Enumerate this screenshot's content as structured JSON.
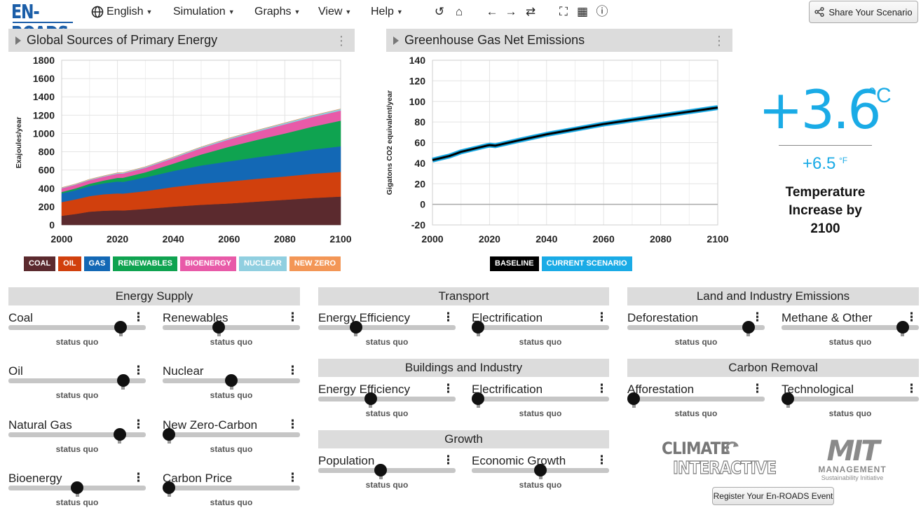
{
  "app": {
    "logo": "EN-ROADS"
  },
  "menu": {
    "language": "English",
    "simulation": "Simulation",
    "graphs": "Graphs",
    "view": "View",
    "help": "Help"
  },
  "share_button": "Share Your Scenario",
  "panels": {
    "left_title": "Global Sources of Primary Energy",
    "right_title": "Greenhouse Gas Net Emissions"
  },
  "chart_data": [
    {
      "type": "area",
      "stacked": true,
      "ylabel": "Exajoules/year",
      "xlabel": "",
      "x": [
        2000,
        2005,
        2010,
        2015,
        2020,
        2022,
        2030,
        2040,
        2050,
        2060,
        2070,
        2080,
        2090,
        2100
      ],
      "xticks": [
        2000,
        2020,
        2040,
        2060,
        2080,
        2100
      ],
      "yticks": [
        0,
        200,
        400,
        600,
        800,
        1000,
        1200,
        1400,
        1600,
        1800
      ],
      "ylim": [
        0,
        1800
      ],
      "xlim": [
        2000,
        2100
      ],
      "grid": true,
      "legend_position": "bottom",
      "series": [
        {
          "name": "COAL",
          "color": "#5b2a2e",
          "values": [
            100,
            120,
            145,
            155,
            160,
            158,
            175,
            200,
            220,
            235,
            255,
            275,
            295,
            310
          ]
        },
        {
          "name": "OIL",
          "color": "#d1400d",
          "values": [
            150,
            160,
            170,
            180,
            185,
            185,
            195,
            215,
            230,
            240,
            250,
            255,
            265,
            270
          ]
        },
        {
          "name": "GAS",
          "color": "#1368b5",
          "values": [
            95,
            100,
            110,
            120,
            130,
            128,
            150,
            175,
            200,
            220,
            235,
            250,
            265,
            280
          ]
        },
        {
          "name": "RENEWABLES",
          "color": "#0fa350",
          "values": [
            15,
            20,
            25,
            30,
            40,
            45,
            55,
            80,
            120,
            160,
            190,
            220,
            250,
            280
          ]
        },
        {
          "name": "BIOENERGY",
          "color": "#e85aa8",
          "values": [
            40,
            40,
            40,
            42,
            45,
            46,
            50,
            60,
            70,
            80,
            90,
            100,
            105,
            110
          ]
        },
        {
          "name": "NUCLEAR",
          "color": "#90cfe0",
          "values": [
            8,
            8,
            9,
            9,
            10,
            10,
            11,
            12,
            13,
            14,
            15,
            16,
            17,
            18
          ]
        },
        {
          "name": "NEW ZERO",
          "color": "#f39656",
          "values": [
            0,
            0,
            0,
            0,
            0,
            0,
            0,
            0,
            0,
            0,
            0,
            0,
            0,
            0
          ]
        }
      ]
    },
    {
      "type": "line",
      "ylabel": "Gigatons CO2 equivalent/year",
      "xlabel": "",
      "x": [
        2000,
        2003,
        2006,
        2008,
        2010,
        2013,
        2016,
        2019,
        2020,
        2022,
        2030,
        2040,
        2050,
        2060,
        2070,
        2080,
        2090,
        2100
      ],
      "xticks": [
        2000,
        2020,
        2040,
        2060,
        2080,
        2100
      ],
      "yticks": [
        -20,
        0,
        20,
        40,
        60,
        80,
        100,
        120,
        140
      ],
      "ylim": [
        -20,
        140
      ],
      "xlim": [
        2000,
        2100
      ],
      "grid": true,
      "legend_position": "bottom",
      "series": [
        {
          "name": "BASELINE",
          "color": "#000000",
          "values": [
            43,
            45,
            47,
            49,
            51,
            53,
            55,
            57,
            57.5,
            57,
            62,
            68,
            73,
            78,
            82,
            86,
            90,
            94
          ]
        },
        {
          "name": "CURRENT SCENARIO",
          "color": "#1aabe6",
          "values": [
            43,
            45,
            47,
            49,
            51,
            53,
            55,
            57,
            57.5,
            57,
            62,
            68,
            73,
            78,
            82,
            86,
            90,
            94
          ]
        }
      ]
    }
  ],
  "temperature": {
    "celsius": "+3.6",
    "celsius_unit": "°C",
    "fahrenheit": "+6.5",
    "fahrenheit_unit": "°F",
    "label_line1": "Temperature",
    "label_line2": "Increase by",
    "label_line3": "2100"
  },
  "sections": {
    "energy_supply": "Energy Supply",
    "transport": "Transport",
    "buildings": "Buildings and Industry",
    "growth": "Growth",
    "land": "Land and Industry Emissions",
    "carbon_removal": "Carbon Removal"
  },
  "status": "status quo",
  "sliders": {
    "coal": {
      "label": "Coal",
      "value": 0.85
    },
    "renewables": {
      "label": "Renewables",
      "value": 0.4
    },
    "oil": {
      "label": "Oil",
      "value": 0.87
    },
    "nuclear": {
      "label": "Nuclear",
      "value": 0.5
    },
    "natural_gas": {
      "label": "Natural Gas",
      "value": 0.84
    },
    "new_zero_carbon": {
      "label": "New Zero-Carbon",
      "value": 0.0
    },
    "bioenergy": {
      "label": "Bioenergy",
      "value": 0.5
    },
    "carbon_price": {
      "label": "Carbon Price",
      "value": 0.0
    },
    "transport_efficiency": {
      "label": "Energy Efficiency",
      "value": 0.25
    },
    "transport_electrification": {
      "label": "Electrification",
      "value": 0.0
    },
    "buildings_efficiency": {
      "label": "Energy Efficiency",
      "value": 0.37
    },
    "buildings_electrification": {
      "label": "Electrification",
      "value": 0.0
    },
    "population": {
      "label": "Population",
      "value": 0.45
    },
    "economic_growth": {
      "label": "Economic Growth",
      "value": 0.5
    },
    "deforestation": {
      "label": "Deforestation",
      "value": 0.92
    },
    "methane": {
      "label": "Methane & Other",
      "value": 0.92
    },
    "afforestation": {
      "label": "Afforestation",
      "value": 0.0
    },
    "technological": {
      "label": "Technological",
      "value": 0.0
    }
  },
  "logos": {
    "climate_line1": "CLIMATE",
    "climate_line2": "INTERACTIVE",
    "mit_line1": "MIT",
    "mit_line2": "MANAGEMENT",
    "mit_line3": "Sustainability Initiative"
  },
  "register_button": "Register Your En-ROADS Event"
}
